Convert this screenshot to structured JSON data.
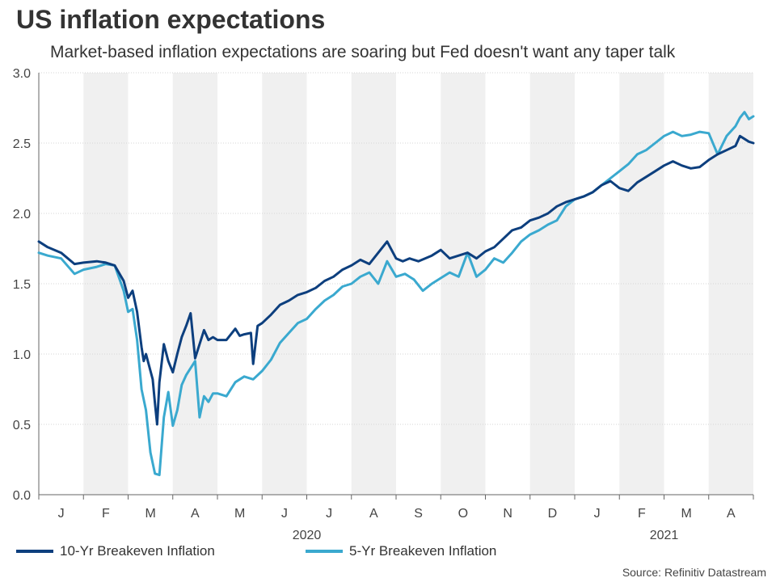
{
  "title": "US inflation expectations",
  "subtitle": "Market-based inflation expectations are soaring but Fed doesn't want any taper talk",
  "source": "Source: Refinitiv Datastream",
  "colors": {
    "series10": "#0d3f7e",
    "series5": "#3aa9cf",
    "band": "#f0f0f0",
    "axis": "#666666"
  },
  "chart_data": {
    "type": "line",
    "title": "US inflation expectations",
    "xlabel": "",
    "ylabel": "",
    "ylim": [
      0,
      3
    ],
    "yticks": [
      "0.0",
      "0.5",
      "1.0",
      "1.5",
      "2.0",
      "2.5",
      "3.0"
    ],
    "xlim": [
      0,
      16
    ],
    "x_unit": "months since Jan 1 2020",
    "months": [
      "J",
      "F",
      "M",
      "A",
      "M",
      "J",
      "J",
      "A",
      "S",
      "O",
      "N",
      "D",
      "J",
      "F",
      "M",
      "A"
    ],
    "years": [
      {
        "label": "2020",
        "x": 6
      },
      {
        "label": "2021",
        "x": 14
      }
    ],
    "series": [
      {
        "name": "10-Yr Breakeven Inflation",
        "color": "#0d3f7e",
        "x": [
          0,
          0.2,
          0.5,
          0.8,
          1.0,
          1.3,
          1.5,
          1.7,
          1.9,
          2.0,
          2.1,
          2.2,
          2.3,
          2.35,
          2.4,
          2.55,
          2.6,
          2.65,
          2.7,
          2.8,
          2.9,
          3.0,
          3.1,
          3.2,
          3.3,
          3.4,
          3.5,
          3.6,
          3.7,
          3.8,
          3.9,
          4.0,
          4.2,
          4.4,
          4.5,
          4.6,
          4.75,
          4.8,
          4.9,
          5.0,
          5.2,
          5.4,
          5.6,
          5.8,
          6.0,
          6.2,
          6.4,
          6.6,
          6.8,
          7.0,
          7.2,
          7.4,
          7.6,
          7.8,
          8.0,
          8.15,
          8.3,
          8.5,
          8.8,
          9.0,
          9.2,
          9.4,
          9.6,
          9.8,
          10.0,
          10.2,
          10.4,
          10.6,
          10.8,
          11.0,
          11.2,
          11.4,
          11.6,
          11.8,
          12.0,
          12.2,
          12.4,
          12.6,
          12.8,
          13.0,
          13.2,
          13.4,
          13.6,
          13.8,
          14.0,
          14.2,
          14.4,
          14.6,
          14.8,
          15.0,
          15.2,
          15.4,
          15.6,
          15.7,
          15.8,
          15.9,
          16.0
        ],
        "values": [
          1.8,
          1.76,
          1.72,
          1.64,
          1.65,
          1.66,
          1.65,
          1.63,
          1.52,
          1.4,
          1.45,
          1.3,
          1.05,
          0.95,
          1.0,
          0.82,
          0.65,
          0.5,
          0.8,
          1.07,
          0.95,
          0.87,
          1.0,
          1.12,
          1.2,
          1.29,
          0.97,
          1.07,
          1.17,
          1.1,
          1.12,
          1.1,
          1.1,
          1.18,
          1.13,
          1.14,
          1.15,
          0.93,
          1.2,
          1.22,
          1.28,
          1.35,
          1.38,
          1.42,
          1.44,
          1.47,
          1.52,
          1.55,
          1.6,
          1.63,
          1.67,
          1.64,
          1.72,
          1.8,
          1.68,
          1.66,
          1.68,
          1.66,
          1.7,
          1.74,
          1.68,
          1.7,
          1.72,
          1.68,
          1.73,
          1.76,
          1.82,
          1.88,
          1.9,
          1.95,
          1.97,
          2.0,
          2.05,
          2.08,
          2.1,
          2.12,
          2.15,
          2.2,
          2.23,
          2.18,
          2.16,
          2.22,
          2.26,
          2.3,
          2.34,
          2.37,
          2.34,
          2.32,
          2.33,
          2.38,
          2.42,
          2.45,
          2.48,
          2.55,
          2.53,
          2.51,
          2.5
        ]
      },
      {
        "name": "5-Yr Breakeven Inflation",
        "color": "#3aa9cf",
        "x": [
          0,
          0.2,
          0.5,
          0.8,
          1.0,
          1.3,
          1.5,
          1.7,
          1.9,
          2.0,
          2.1,
          2.2,
          2.3,
          2.4,
          2.5,
          2.6,
          2.7,
          2.8,
          2.9,
          3.0,
          3.1,
          3.2,
          3.3,
          3.4,
          3.5,
          3.6,
          3.7,
          3.8,
          3.9,
          4.0,
          4.2,
          4.4,
          4.6,
          4.8,
          5.0,
          5.2,
          5.4,
          5.6,
          5.8,
          6.0,
          6.2,
          6.4,
          6.6,
          6.8,
          7.0,
          7.2,
          7.4,
          7.6,
          7.8,
          8.0,
          8.2,
          8.4,
          8.6,
          8.8,
          9.0,
          9.2,
          9.4,
          9.6,
          9.8,
          10.0,
          10.2,
          10.4,
          10.6,
          10.8,
          11.0,
          11.2,
          11.4,
          11.6,
          11.8,
          12.0,
          12.2,
          12.4,
          12.6,
          12.8,
          13.0,
          13.2,
          13.4,
          13.6,
          13.8,
          14.0,
          14.2,
          14.4,
          14.6,
          14.8,
          15.0,
          15.2,
          15.4,
          15.6,
          15.7,
          15.8,
          15.9,
          16.0
        ],
        "values": [
          1.72,
          1.7,
          1.68,
          1.57,
          1.6,
          1.62,
          1.64,
          1.63,
          1.45,
          1.3,
          1.32,
          1.1,
          0.75,
          0.6,
          0.3,
          0.15,
          0.14,
          0.55,
          0.73,
          0.49,
          0.6,
          0.78,
          0.85,
          0.9,
          0.95,
          0.55,
          0.7,
          0.66,
          0.72,
          0.72,
          0.7,
          0.8,
          0.84,
          0.82,
          0.88,
          0.96,
          1.08,
          1.15,
          1.22,
          1.25,
          1.32,
          1.38,
          1.42,
          1.48,
          1.5,
          1.55,
          1.58,
          1.5,
          1.66,
          1.55,
          1.57,
          1.53,
          1.45,
          1.5,
          1.54,
          1.58,
          1.55,
          1.72,
          1.55,
          1.6,
          1.68,
          1.65,
          1.72,
          1.8,
          1.85,
          1.88,
          1.92,
          1.95,
          2.05,
          2.1,
          2.12,
          2.15,
          2.2,
          2.25,
          2.3,
          2.35,
          2.42,
          2.45,
          2.5,
          2.55,
          2.58,
          2.55,
          2.56,
          2.58,
          2.57,
          2.42,
          2.55,
          2.62,
          2.68,
          2.72,
          2.67,
          2.69
        ]
      }
    ]
  }
}
